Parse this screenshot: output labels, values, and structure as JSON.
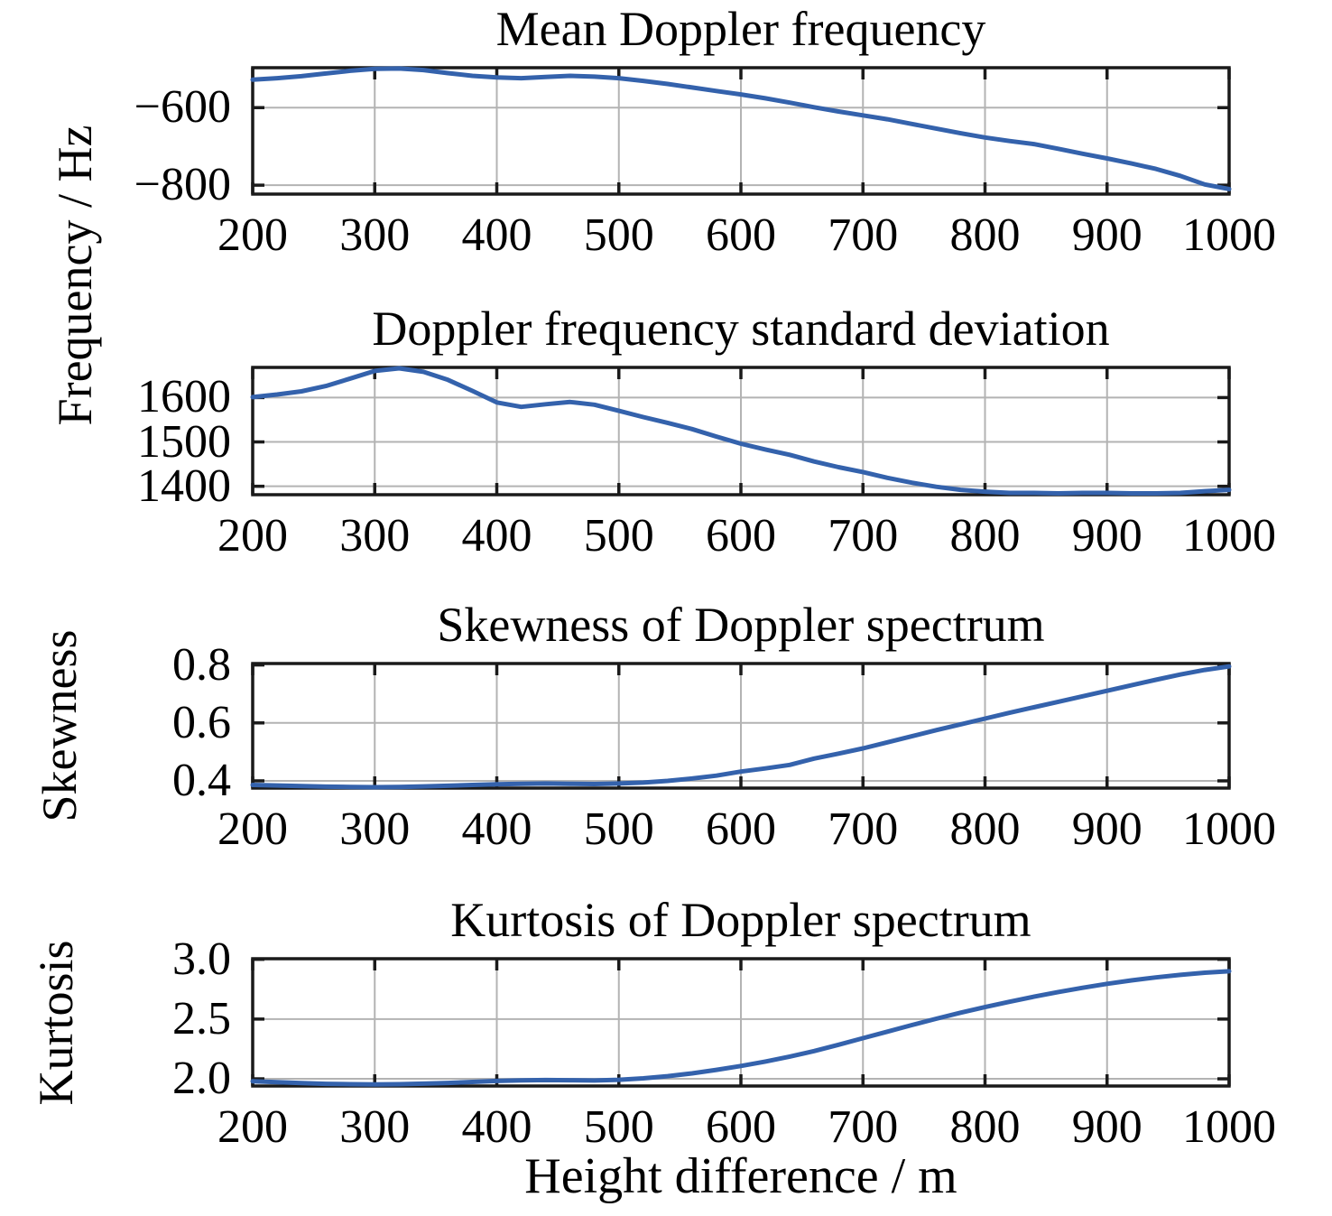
{
  "figure_style": {
    "background": "#ffffff",
    "line_color": "#3462ac",
    "grid_color": "#b3b3b3",
    "axis_color": "#1a1a1a",
    "text_color": "#000000"
  },
  "x_axis": {
    "label": "Height difference / m",
    "xlim": [
      200,
      1000
    ],
    "ticks": [
      200,
      300,
      400,
      500,
      600,
      700,
      800,
      900,
      1000
    ],
    "tick_labels": [
      "200",
      "300",
      "400",
      "500",
      "600",
      "700",
      "800",
      "900",
      "1000"
    ]
  },
  "y_axis_labels": {
    "frequency": "Frequency / Hz",
    "skewness": "Skewness",
    "kurtosis": "Kurtosis"
  },
  "chart_data": [
    {
      "type": "line",
      "title": "Mean Doppler frequency",
      "ylabel": "Frequency / Hz",
      "ylim": [
        -823,
        -497
      ],
      "yticks": [
        -600,
        -800
      ],
      "ytick_labels": [
        "−600",
        "−800"
      ],
      "grid": true,
      "x": [
        200,
        220,
        240,
        260,
        280,
        300,
        320,
        340,
        360,
        380,
        400,
        420,
        440,
        460,
        480,
        500,
        520,
        540,
        560,
        580,
        600,
        620,
        640,
        660,
        680,
        700,
        720,
        740,
        760,
        780,
        800,
        820,
        840,
        860,
        880,
        900,
        920,
        940,
        960,
        980,
        1000
      ],
      "y": [
        -528,
        -524,
        -519,
        -512,
        -505,
        -500,
        -499,
        -503,
        -511,
        -518,
        -522,
        -524,
        -521,
        -518,
        -520,
        -524,
        -531,
        -539,
        -548,
        -557,
        -566,
        -576,
        -587,
        -599,
        -610,
        -620,
        -630,
        -642,
        -654,
        -666,
        -677,
        -686,
        -694,
        -706,
        -719,
        -731,
        -744,
        -758,
        -776,
        -798,
        -810
      ]
    },
    {
      "type": "line",
      "title": "Doppler frequency standard deviation",
      "ylabel": "Frequency / Hz",
      "ylim": [
        1381,
        1668
      ],
      "yticks": [
        1600,
        1500,
        1400
      ],
      "ytick_labels": [
        "1600",
        "1500",
        "1400"
      ],
      "grid": true,
      "x": [
        200,
        220,
        240,
        260,
        280,
        300,
        320,
        340,
        360,
        380,
        400,
        420,
        440,
        460,
        480,
        500,
        520,
        540,
        560,
        580,
        600,
        620,
        640,
        660,
        680,
        700,
        720,
        740,
        760,
        780,
        800,
        820,
        840,
        860,
        880,
        900,
        920,
        940,
        960,
        980,
        1000
      ],
      "y": [
        1601,
        1607,
        1614,
        1626,
        1643,
        1660,
        1666,
        1658,
        1640,
        1615,
        1589,
        1579,
        1585,
        1590,
        1584,
        1570,
        1556,
        1543,
        1529,
        1512,
        1496,
        1483,
        1471,
        1456,
        1443,
        1432,
        1419,
        1408,
        1399,
        1392,
        1388,
        1385,
        1385,
        1384,
        1385,
        1385,
        1384,
        1384,
        1385,
        1389,
        1392
      ]
    },
    {
      "type": "line",
      "title": "Skewness of Doppler spectrum",
      "ylabel": "Skewness",
      "ylim": [
        0.375,
        0.805
      ],
      "yticks": [
        0.8,
        0.6,
        0.4
      ],
      "ytick_labels": [
        "0.8",
        "0.6",
        "0.4"
      ],
      "grid": true,
      "x": [
        200,
        220,
        240,
        260,
        280,
        300,
        320,
        340,
        360,
        380,
        400,
        420,
        440,
        460,
        480,
        500,
        520,
        540,
        560,
        580,
        600,
        620,
        640,
        660,
        680,
        700,
        720,
        740,
        760,
        780,
        800,
        820,
        840,
        860,
        880,
        900,
        920,
        940,
        960,
        980,
        1000
      ],
      "y": [
        0.386,
        0.384,
        0.382,
        0.38,
        0.379,
        0.378,
        0.379,
        0.381,
        0.383,
        0.386,
        0.388,
        0.39,
        0.391,
        0.39,
        0.389,
        0.391,
        0.394,
        0.4,
        0.408,
        0.418,
        0.432,
        0.443,
        0.455,
        0.477,
        0.494,
        0.512,
        0.533,
        0.554,
        0.575,
        0.595,
        0.615,
        0.635,
        0.654,
        0.673,
        0.692,
        0.711,
        0.73,
        0.749,
        0.767,
        0.783,
        0.795
      ]
    },
    {
      "type": "line",
      "title": "Kurtosis of Doppler spectrum",
      "ylabel": "Kurtosis",
      "ylim": [
        1.94,
        3.005
      ],
      "yticks": [
        3.0,
        2.5,
        2.0
      ],
      "ytick_labels": [
        "3.0",
        "2.5",
        "2.0"
      ],
      "grid": true,
      "x": [
        200,
        220,
        240,
        260,
        280,
        300,
        320,
        340,
        360,
        380,
        400,
        420,
        440,
        460,
        480,
        500,
        520,
        540,
        560,
        580,
        600,
        620,
        640,
        660,
        680,
        700,
        720,
        740,
        760,
        780,
        800,
        820,
        840,
        860,
        880,
        900,
        920,
        940,
        960,
        980,
        1000
      ],
      "y": [
        1.98,
        1.972,
        1.964,
        1.958,
        1.955,
        1.953,
        1.955,
        1.96,
        1.966,
        1.974,
        1.982,
        1.987,
        1.99,
        1.988,
        1.986,
        1.992,
        2.004,
        2.022,
        2.046,
        2.075,
        2.108,
        2.145,
        2.186,
        2.232,
        2.285,
        2.34,
        2.395,
        2.45,
        2.503,
        2.553,
        2.6,
        2.645,
        2.687,
        2.726,
        2.762,
        2.795,
        2.824,
        2.849,
        2.87,
        2.888,
        2.9
      ]
    }
  ]
}
